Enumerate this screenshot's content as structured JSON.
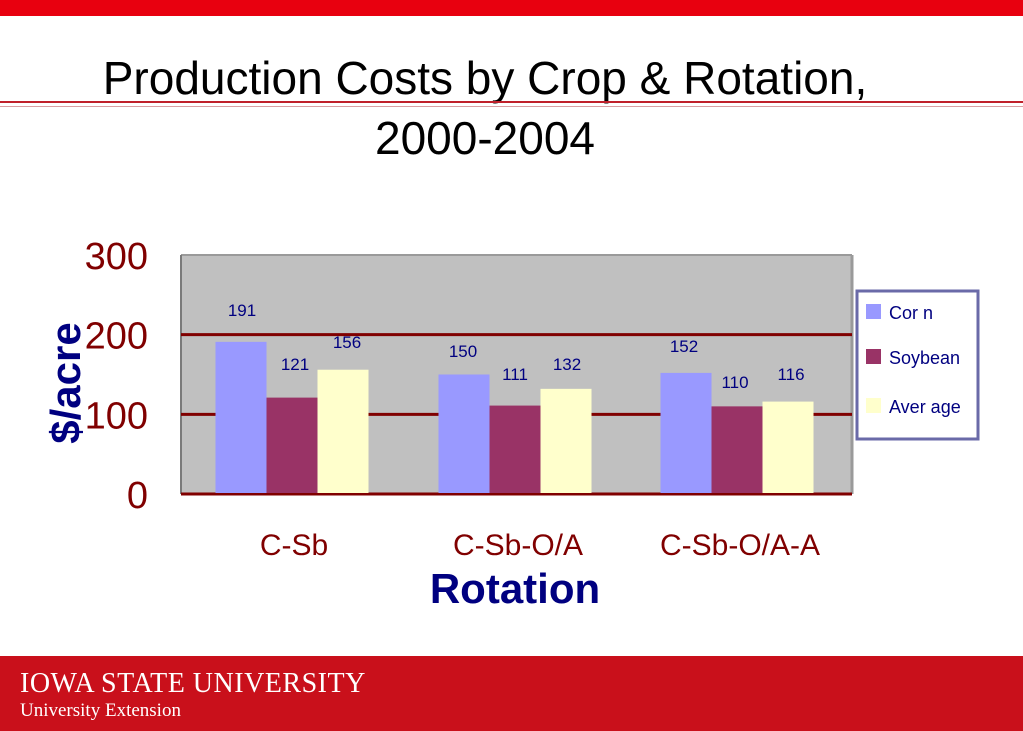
{
  "slide": {
    "title_line1": "Production Costs by Crop & Rotation,",
    "title_line2": "2000-2004"
  },
  "footer": {
    "institution": "IOWA STATE UNIVERSITY",
    "unit": "University Extension"
  },
  "colors": {
    "top_bar": "#e8000f",
    "footer": "#c9101b",
    "corn": "#9999ff",
    "soybean": "#993366",
    "average": "#ffffcc",
    "plot_bg": "#c0c0c0",
    "gridline": "#800000",
    "tick_label": "#800000",
    "axis_title": "#000080",
    "data_label": "#000080"
  },
  "chart_data": {
    "type": "bar",
    "title": "Production Costs by Crop & Rotation, 2000-2004",
    "xlabel": "Rotation",
    "ylabel": "$/acre",
    "categories": [
      "C-Sb",
      "C-Sb-O/A",
      "C-Sb-O/A-A"
    ],
    "series": [
      {
        "name": "Cor n",
        "values": [
          191,
          150,
          152
        ]
      },
      {
        "name": "Soybean",
        "values": [
          121,
          111,
          110
        ]
      },
      {
        "name": "Aver age",
        "values": [
          156,
          132,
          116
        ]
      }
    ],
    "data_labels": [
      [
        "191",
        "150",
        "152"
      ],
      [
        "121",
        "111",
        "110"
      ],
      [
        "156",
        "132",
        "116"
      ]
    ],
    "ylim": [
      0,
      300
    ],
    "yticks": [
      0,
      100,
      200,
      300
    ],
    "grid": true,
    "legend_position": "right"
  }
}
